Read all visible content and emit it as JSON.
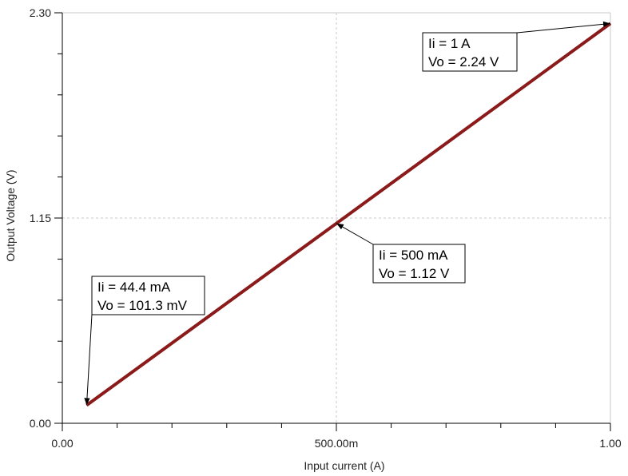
{
  "chart_data": {
    "type": "line",
    "title": "",
    "xlabel": "Input current (A)",
    "ylabel": "Output Voltage (V)",
    "xlim": [
      0,
      1
    ],
    "ylim": [
      0,
      2.3
    ],
    "grid": "dashed at midpoints",
    "x_tick_labels": [
      "0.00",
      "500.00m",
      "1.00"
    ],
    "y_tick_labels": [
      "0.00",
      "1.15",
      "2.30"
    ],
    "series": [
      {
        "color": "#8b1a1a",
        "x": [
          0.0444,
          0.5,
          1.0
        ],
        "y": [
          0.1013,
          1.12,
          2.24
        ]
      }
    ],
    "annotations": [
      {
        "line1": "Ii = 44.4 mA",
        "line2": "Vo = 101.3 mV",
        "x": 0.0444,
        "y": 0.1013
      },
      {
        "line1": "Ii = 500 mA",
        "line2": "Vo = 1.12 V",
        "x": 0.5,
        "y": 1.12
      },
      {
        "line1": "Ii = 1 A",
        "line2": "Vo =  2.24 V",
        "x": 1.0,
        "y": 2.24
      }
    ]
  }
}
